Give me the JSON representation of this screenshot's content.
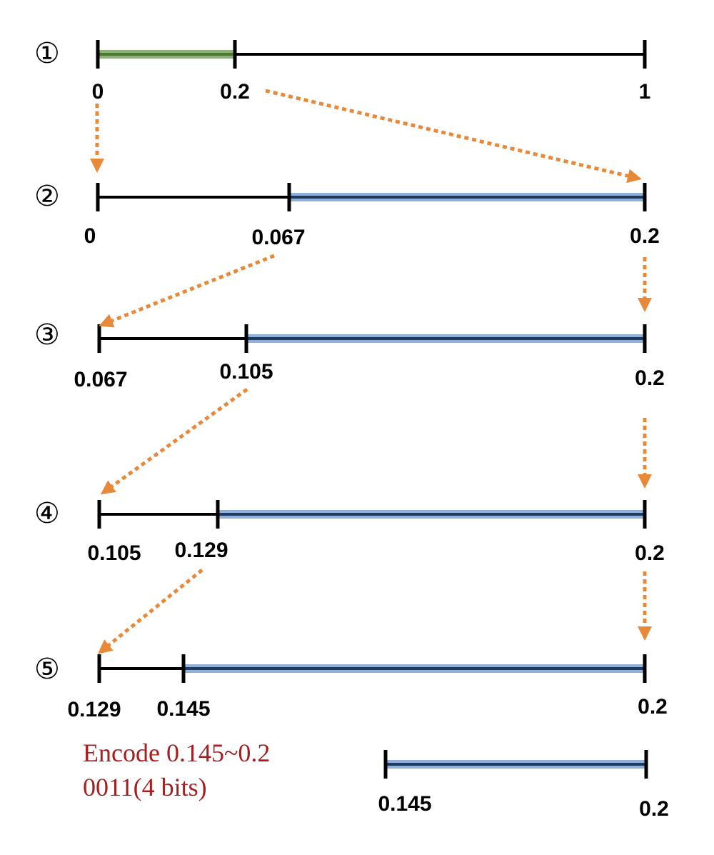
{
  "rows": [
    {
      "step": "①",
      "highlight_color": "#4a7a2a",
      "start": "0",
      "split": "0.2",
      "end": "1"
    },
    {
      "step": "②",
      "highlight_color": "#1f3a60",
      "start": "0",
      "split": "0.067",
      "end": "0.2"
    },
    {
      "step": "③",
      "highlight_color": "#1f3a60",
      "start": "0.067",
      "split": "0.105",
      "end": "0.2"
    },
    {
      "step": "④",
      "highlight_color": "#1f3a60",
      "start": "0.105",
      "split": "0.129",
      "end": "0.2"
    },
    {
      "step": "⑤",
      "highlight_color": "#1f3a60",
      "start": "0.129",
      "split": "0.145",
      "end": "0.2"
    }
  ],
  "result": {
    "start": "0.145",
    "end": "0.2",
    "caption_line1": "Encode 0.145~0.2",
    "caption_line2": "0011(4 bits)",
    "caption_color": "#a61e1e"
  },
  "arrow_color": "#e8893a"
}
